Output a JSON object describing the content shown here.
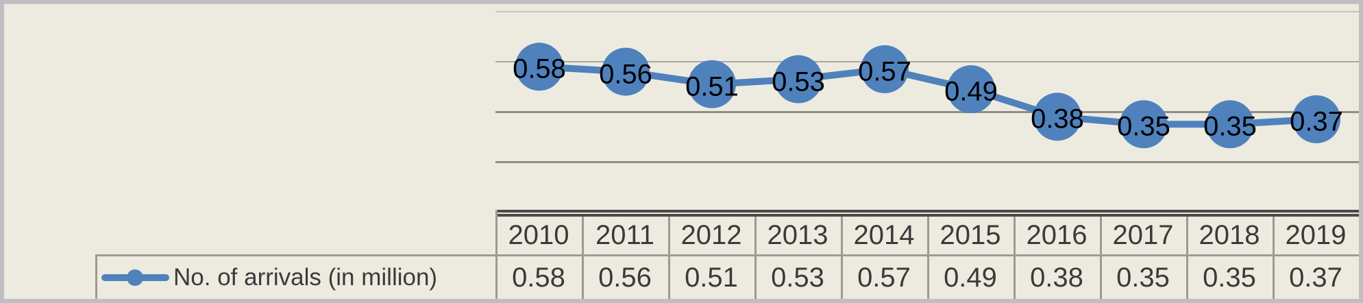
{
  "colors": {
    "background": "#edebe0",
    "frame_border": "#bfbfc1",
    "series_blue": "#4f81bd",
    "label_text": "#000000",
    "table_text": "#3a3a3a",
    "grid_light": "#c6c5bc",
    "grid_mid": "#a9a8a0",
    "grid_dark": "#8f8e86",
    "table_border": "#9b9a94",
    "table_top_border": "#4a4a49"
  },
  "chart_data": {
    "type": "line",
    "title": "",
    "categories": [
      "2010",
      "2011",
      "2012",
      "2013",
      "2014",
      "2015",
      "2016",
      "2017",
      "2018",
      "2019"
    ],
    "series": [
      {
        "name": "No. of arrivals (in million)",
        "values": [
          0.58,
          0.56,
          0.51,
          0.53,
          0.57,
          0.49,
          0.38,
          0.35,
          0.35,
          0.37
        ]
      }
    ],
    "value_labels": [
      "0.58",
      "0.56",
      "0.51",
      "0.53",
      "0.57",
      "0.49",
      "0.38",
      "0.35",
      "0.35",
      "0.37"
    ],
    "ylim": [
      0,
      0.8
    ],
    "yticks": [
      0.2,
      0.4,
      0.6,
      0.8
    ],
    "grid": "horizontal",
    "data_labels": true,
    "legend_position": "bottom-left",
    "data_table_shown": true
  }
}
